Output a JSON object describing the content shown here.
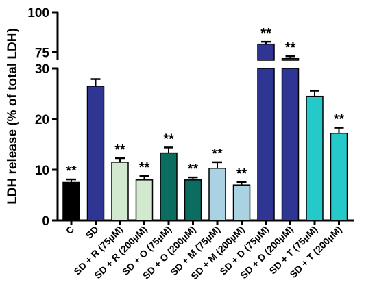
{
  "chart_data": {
    "type": "bar",
    "title": "",
    "xlabel": "",
    "ylabel": "LDH release (% of total LDH)",
    "axis_break": {
      "lower_range": [
        0,
        30
      ],
      "upper_range": [
        70,
        100
      ]
    },
    "y_ticks_lower": [
      "0",
      "10",
      "20",
      "30"
    ],
    "y_ticks_upper": [
      "75",
      "100"
    ],
    "categories": [
      "C",
      "SD",
      "SD + R (75µM)",
      "SD + R (200µM)",
      "SD + O (75µM)",
      "SD + O (200µM)",
      "SD + M (75µM)",
      "SD + M (200µM)",
      "SD + D (75µM)",
      "SD + D (200µM)",
      "SD + T (75µM)",
      "SD + T (200µM)"
    ],
    "values": [
      7.5,
      26.5,
      11.5,
      8.0,
      13.3,
      8.0,
      10.3,
      7.0,
      80.0,
      71.0,
      24.5,
      17.2
    ],
    "errors": [
      0.6,
      1.4,
      0.8,
      0.8,
      1.1,
      0.5,
      1.2,
      0.6,
      1.5,
      1.5,
      1.1,
      1.1
    ],
    "significance": [
      "**",
      "",
      "**",
      "**",
      "**",
      "**",
      "**",
      "**",
      "**",
      "**",
      "",
      "**"
    ],
    "colors": [
      "#000000",
      "#2e3592",
      "#d2e8cf",
      "#d2e8cf",
      "#0b6d5f",
      "#0b6d5f",
      "#a9d3e2",
      "#a9d3e2",
      "#2e3592",
      "#2e3592",
      "#26c9c9",
      "#26c9c9"
    ]
  }
}
